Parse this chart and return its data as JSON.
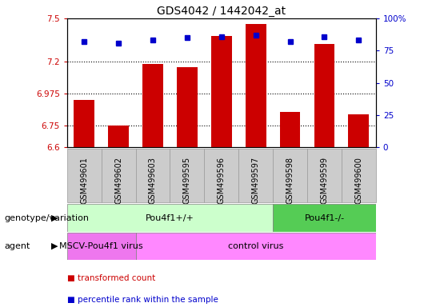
{
  "title": "GDS4042 / 1442042_at",
  "samples": [
    "GSM499601",
    "GSM499602",
    "GSM499603",
    "GSM499595",
    "GSM499596",
    "GSM499597",
    "GSM499598",
    "GSM499599",
    "GSM499600"
  ],
  "red_values": [
    6.93,
    6.75,
    7.18,
    7.16,
    7.38,
    7.46,
    6.85,
    7.32,
    6.83
  ],
  "blue_values": [
    82,
    81,
    83,
    85,
    86,
    87,
    82,
    86,
    83
  ],
  "ylim_left": [
    6.6,
    7.5
  ],
  "ylim_right": [
    0,
    100
  ],
  "yticks_left": [
    6.6,
    6.75,
    6.975,
    7.2,
    7.5
  ],
  "ytick_labels_left": [
    "6.6",
    "6.75",
    "6.975",
    "7.2",
    "7.5"
  ],
  "yticks_right": [
    0,
    25,
    50,
    75,
    100
  ],
  "ytick_labels_right": [
    "0",
    "25",
    "50",
    "75",
    "100%"
  ],
  "hlines": [
    7.2,
    6.975,
    6.75
  ],
  "bar_bottom": 6.6,
  "bar_width": 0.6,
  "red_color": "#cc0000",
  "blue_color": "#0000cc",
  "genotype_groups": [
    {
      "label": "Pou4f1+/+",
      "start": 0,
      "end": 6,
      "color": "#ccffcc"
    },
    {
      "label": "Pou4f1-/-",
      "start": 6,
      "end": 9,
      "color": "#55cc55"
    }
  ],
  "agent_groups": [
    {
      "label": "MSCV-Pou4f1 virus",
      "start": 0,
      "end": 2,
      "color": "#ee77ee"
    },
    {
      "label": "control virus",
      "start": 2,
      "end": 9,
      "color": "#ff88ff"
    }
  ],
  "legend_items": [
    {
      "color": "#cc0000",
      "label": "transformed count"
    },
    {
      "color": "#0000cc",
      "label": "percentile rank within the sample"
    }
  ],
  "row_labels": [
    "genotype/variation",
    "agent"
  ],
  "tick_color_left": "#cc0000",
  "tick_color_right": "#0000cc",
  "xtick_bg_color": "#cccccc",
  "xtick_border_color": "#999999"
}
